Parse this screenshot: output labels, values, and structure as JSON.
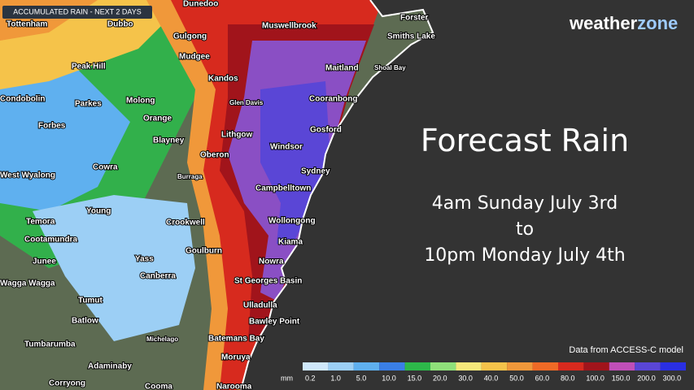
{
  "header": {
    "badge": "ACCUMULATED RAIN - NEXT 2 DAYS",
    "logo_left": "weather",
    "logo_right": "zone"
  },
  "title": "Forecast Rain",
  "period": {
    "start": "4am Sunday July 3rd",
    "join": "to",
    "end": "10pm Monday July 4th"
  },
  "source": "Data from ACCESS-C model",
  "legend": {
    "unit": "mm",
    "entries": [
      {
        "label": "0.2",
        "color": "#cfe8fb"
      },
      {
        "label": "1.0",
        "color": "#9ccff5"
      },
      {
        "label": "5.0",
        "color": "#5fb0ef"
      },
      {
        "label": "10.0",
        "color": "#3a7fe6"
      },
      {
        "label": "15.0",
        "color": "#2db84a"
      },
      {
        "label": "20.0",
        "color": "#8fe07a"
      },
      {
        "label": "30.0",
        "color": "#f5e87a"
      },
      {
        "label": "40.0",
        "color": "#f5c34a"
      },
      {
        "label": "50.0",
        "color": "#f0983a"
      },
      {
        "label": "60.0",
        "color": "#ef6a26"
      },
      {
        "label": "80.0",
        "color": "#d72a1e"
      },
      {
        "label": "100.0",
        "color": "#a1141b"
      },
      {
        "label": "150.0",
        "color": "#c04fb8"
      },
      {
        "label": "200.0",
        "color": "#5a46d6"
      },
      {
        "label": "300.0",
        "color": "#2a2fe3"
      }
    ]
  },
  "places": [
    "Dunedoo",
    "Tottenham",
    "Dubbo",
    "Gulgong",
    "Muswellbrook",
    "Forster",
    "Smiths Lake",
    "Mudgee",
    "Peak Hill",
    "Maitland",
    "Shoal Bay",
    "Kandos",
    "Condobolin",
    "Parkes",
    "Molong",
    "Glen Davis",
    "Cooranbong",
    "Forbes",
    "Orange",
    "Lithgow",
    "Gosford",
    "Blayney",
    "Windsor",
    "Oberon",
    "Cowra",
    "Sydney",
    "West Wyalong",
    "Burraga",
    "Campbelltown",
    "Young",
    "Temora",
    "Crookwell",
    "Wollongong",
    "Cootamundra",
    "Goulburn",
    "Kiama",
    "Junee",
    "Yass",
    "Nowra",
    "Wagga Wagga",
    "Canberra",
    "St Georges Basin",
    "Tumut",
    "Ulladulla",
    "Batlow",
    "Bawley Point",
    "Michelago",
    "Batemans Bay",
    "Tumbarumba",
    "Moruya",
    "Adaminaby",
    "Corryong",
    "Cooma",
    "Narooma"
  ]
}
